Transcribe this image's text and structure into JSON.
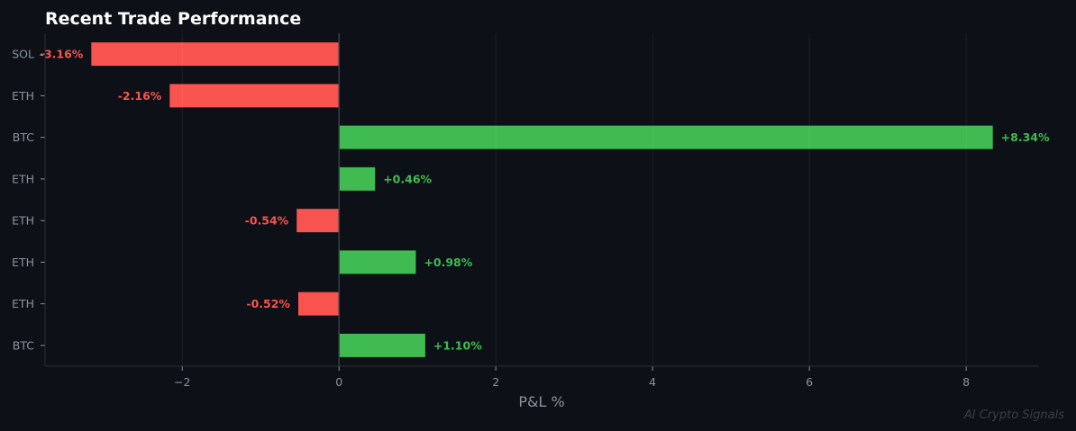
{
  "chart_data": {
    "type": "bar",
    "orientation": "horizontal",
    "title": "Recent Trade Performance",
    "xlabel": "P&L %",
    "ylabel": "",
    "categories": [
      "SOL",
      "ETH",
      "BTC",
      "ETH",
      "ETH",
      "ETH",
      "ETH",
      "BTC"
    ],
    "values": [
      -3.16,
      -2.16,
      8.34,
      0.46,
      -0.54,
      0.98,
      -0.52,
      1.1
    ],
    "data_labels": [
      "-3.16%",
      "-2.16%",
      "+8.34%",
      "+0.46%",
      "-0.54%",
      "+0.98%",
      "-0.52%",
      "+1.10%"
    ],
    "xlim": [
      -3.75,
      8.93
    ],
    "xticks": [
      -2,
      0,
      2,
      4,
      6,
      8
    ],
    "xtick_labels": [
      "−2",
      "0",
      "2",
      "4",
      "6",
      "8"
    ],
    "grid": "vertical",
    "colors": {
      "positive": "#3fbb52",
      "negative": "#f9534f",
      "background": "#0d1017",
      "text": "#8b929c",
      "title": "#ffffff"
    }
  },
  "watermark": "AI Crypto Signals"
}
